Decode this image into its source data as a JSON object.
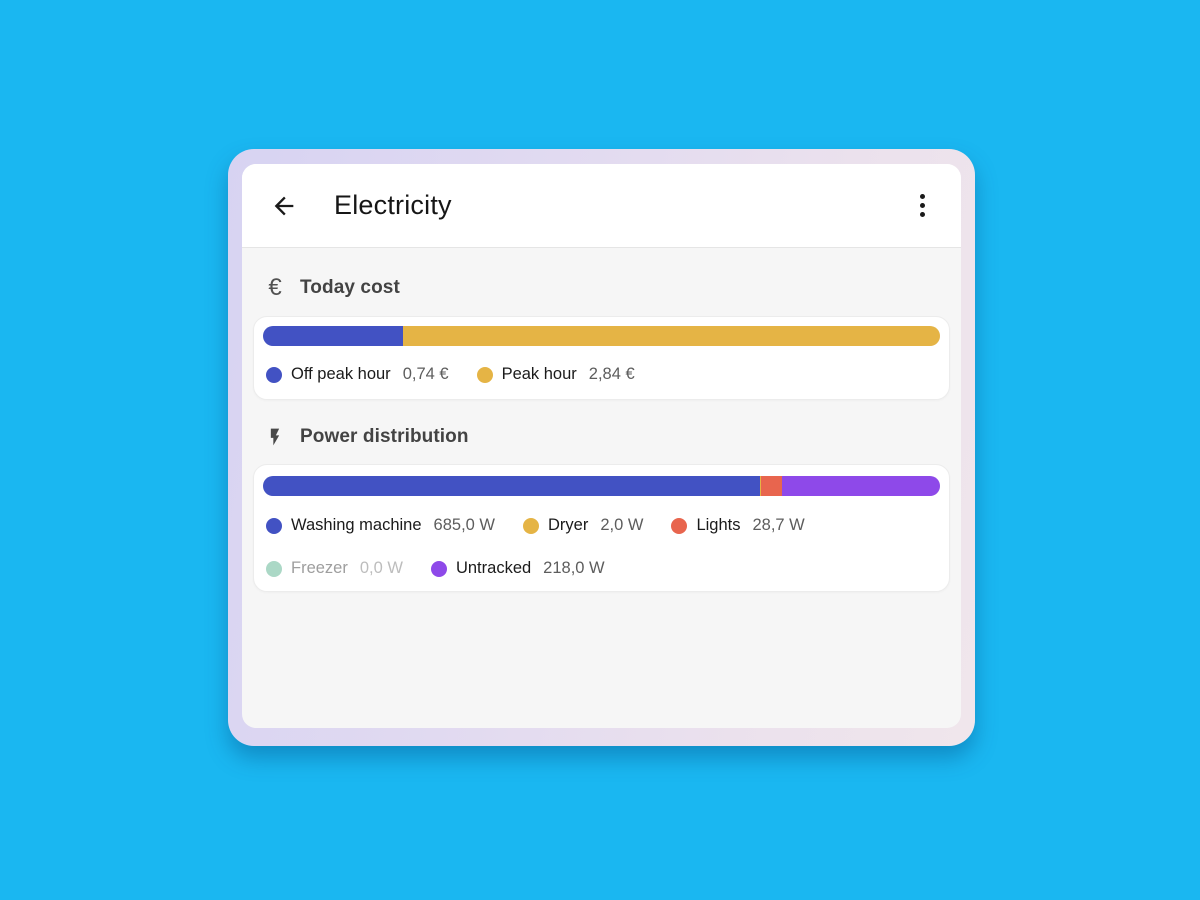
{
  "header": {
    "title": "Electricity",
    "back_icon": "arrow-left-icon",
    "menu_icon": "kebab-menu-icon"
  },
  "colors": {
    "background": "#1ab7f1",
    "content_bg": "#f6f6f6",
    "card_bg": "#ffffff",
    "off_peak_blue": "#4252c3",
    "peak_yellow": "#e5b445",
    "lights_orange": "#e8654e",
    "freezer_mint": "#abd8c6",
    "untracked_purple": "#8e49e9"
  },
  "sections": [
    {
      "title": "Today cost",
      "icon": "euro-icon",
      "icon_glyph": "€",
      "unit": "€",
      "segments": [
        {
          "name": "Off peak hour",
          "value": 0.74,
          "display": "0,74 €",
          "color": "#4252c3"
        },
        {
          "name": "Peak hour",
          "value": 2.84,
          "display": "2,84 €",
          "color": "#e5b445"
        }
      ]
    },
    {
      "title": "Power distribution",
      "icon": "bolt-icon",
      "unit": "W",
      "segments": [
        {
          "name": "Washing machine",
          "value": 685.0,
          "display": "685,0 W",
          "color": "#4252c3"
        },
        {
          "name": "Dryer",
          "value": 2.0,
          "display": "2,0 W",
          "color": "#e5b445"
        },
        {
          "name": "Lights",
          "value": 28.7,
          "display": "28,7 W",
          "color": "#e8654e"
        },
        {
          "name": "Freezer",
          "value": 0.0,
          "display": "0,0 W",
          "color": "#abd8c6",
          "muted": true
        },
        {
          "name": "Untracked",
          "value": 218.0,
          "display": "218,0 W",
          "color": "#8e49e9"
        }
      ]
    }
  ],
  "chart_data": [
    {
      "type": "bar",
      "title": "Today cost",
      "stacked": true,
      "orientation": "horizontal",
      "categories": [
        "Off peak hour",
        "Peak hour"
      ],
      "values": [
        0.74,
        2.84
      ],
      "unit": "€",
      "colors": [
        "#4252c3",
        "#e5b445"
      ],
      "legend_position": "below"
    },
    {
      "type": "bar",
      "title": "Power distribution",
      "stacked": true,
      "orientation": "horizontal",
      "categories": [
        "Washing machine",
        "Dryer",
        "Lights",
        "Freezer",
        "Untracked"
      ],
      "values": [
        685.0,
        2.0,
        28.7,
        0.0,
        218.0
      ],
      "unit": "W",
      "colors": [
        "#4252c3",
        "#e5b445",
        "#e8654e",
        "#abd8c6",
        "#8e49e9"
      ],
      "legend_position": "below"
    }
  ]
}
